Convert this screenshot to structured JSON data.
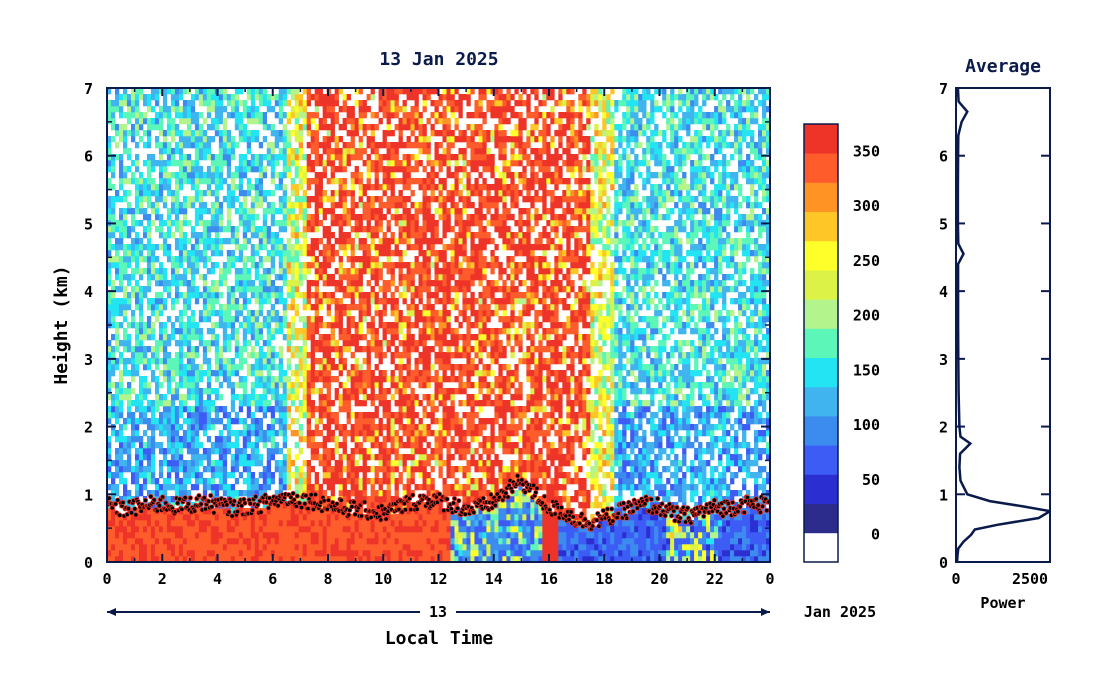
{
  "chart_data": [
    {
      "type": "heatmap",
      "title": "13 Jan 2025",
      "xlabel": "Local Time",
      "ylabel": "Height (km)",
      "x_ticks": [
        "0",
        "2",
        "4",
        "6",
        "8",
        "10",
        "12",
        "14",
        "16",
        "18",
        "20",
        "22",
        "0"
      ],
      "y_ticks": [
        "0",
        "1",
        "2",
        "3",
        "4",
        "5",
        "6",
        "7"
      ],
      "xlim": [
        0,
        24
      ],
      "ylim": [
        0,
        7
      ],
      "date_axis": {
        "day_label": "13",
        "month_year": "Jan 2025"
      },
      "colorbar": {
        "tick_labels": [
          "0",
          "50",
          "100",
          "150",
          "200",
          "250",
          "300",
          "350"
        ],
        "tick_values": [
          0,
          50,
          100,
          150,
          200,
          250,
          300,
          350
        ],
        "range": [
          -25,
          375
        ],
        "colors": [
          "#ffffff",
          "#2c2c8c",
          "#2b2fd2",
          "#3d5cf6",
          "#3c8cf0",
          "#40b4ee",
          "#22e4f2",
          "#5cf7b8",
          "#b4f48c",
          "#dcf246",
          "#ffff2a",
          "#ffc628",
          "#ff9424",
          "#ff5c2c",
          "#ee3428"
        ]
      },
      "cloud_base_height_km": [
        [
          0.0,
          0.85
        ],
        [
          0.5,
          0.78
        ],
        [
          1.0,
          0.8
        ],
        [
          1.5,
          0.84
        ],
        [
          2.0,
          0.86
        ],
        [
          2.5,
          0.82
        ],
        [
          3.0,
          0.85
        ],
        [
          3.5,
          0.88
        ],
        [
          4.0,
          0.84
        ],
        [
          4.5,
          0.8
        ],
        [
          5.0,
          0.82
        ],
        [
          5.5,
          0.85
        ],
        [
          6.0,
          0.9
        ],
        [
          6.5,
          0.95
        ],
        [
          7.0,
          0.92
        ],
        [
          7.5,
          0.9
        ],
        [
          8.0,
          0.85
        ],
        [
          8.5,
          0.8
        ],
        [
          9.0,
          0.78
        ],
        [
          9.5,
          0.75
        ],
        [
          10.0,
          0.72
        ],
        [
          10.5,
          0.8
        ],
        [
          11.0,
          0.88
        ],
        [
          11.5,
          0.92
        ],
        [
          12.0,
          0.9
        ],
        [
          12.5,
          0.85
        ],
        [
          13.0,
          0.78
        ],
        [
          13.5,
          0.8
        ],
        [
          14.0,
          0.9
        ],
        [
          14.5,
          1.05
        ],
        [
          15.0,
          1.2
        ],
        [
          15.5,
          1.0
        ],
        [
          16.0,
          0.8
        ],
        [
          16.5,
          0.75
        ],
        [
          17.0,
          0.62
        ],
        [
          17.5,
          0.6
        ],
        [
          18.0,
          0.65
        ],
        [
          18.5,
          0.72
        ],
        [
          19.0,
          0.8
        ],
        [
          19.5,
          0.85
        ],
        [
          20.0,
          0.82
        ],
        [
          20.5,
          0.7
        ],
        [
          21.0,
          0.68
        ],
        [
          21.5,
          0.75
        ],
        [
          22.0,
          0.8
        ],
        [
          22.5,
          0.8
        ],
        [
          23.0,
          0.85
        ],
        [
          24.0,
          0.85
        ]
      ]
    },
    {
      "type": "line",
      "title": "Average",
      "xlabel": "Power",
      "x_ticks": [
        "0",
        "2500"
      ],
      "y_ticks": [
        "0",
        "1",
        "2",
        "3",
        "4",
        "5",
        "6",
        "7"
      ],
      "xlim": [
        0,
        2500
      ],
      "ylim": [
        0,
        7
      ],
      "profile": [
        [
          30,
          0.0
        ],
        [
          40,
          0.1
        ],
        [
          60,
          0.2
        ],
        [
          200,
          0.3
        ],
        [
          400,
          0.4
        ],
        [
          500,
          0.48
        ],
        [
          1100,
          0.55
        ],
        [
          2200,
          0.65
        ],
        [
          2500,
          0.75
        ],
        [
          1800,
          0.82
        ],
        [
          900,
          0.9
        ],
        [
          300,
          1.0
        ],
        [
          120,
          1.2
        ],
        [
          90,
          1.4
        ],
        [
          110,
          1.6
        ],
        [
          380,
          1.75
        ],
        [
          120,
          1.85
        ],
        [
          90,
          2.0
        ],
        [
          70,
          2.5
        ],
        [
          60,
          3.0
        ],
        [
          55,
          3.5
        ],
        [
          55,
          4.0
        ],
        [
          55,
          4.4
        ],
        [
          200,
          4.55
        ],
        [
          60,
          4.7
        ],
        [
          50,
          5.0
        ],
        [
          50,
          5.5
        ],
        [
          55,
          6.0
        ],
        [
          60,
          6.3
        ],
        [
          150,
          6.5
        ],
        [
          300,
          6.65
        ],
        [
          70,
          6.8
        ],
        [
          50,
          7.0
        ]
      ]
    }
  ]
}
